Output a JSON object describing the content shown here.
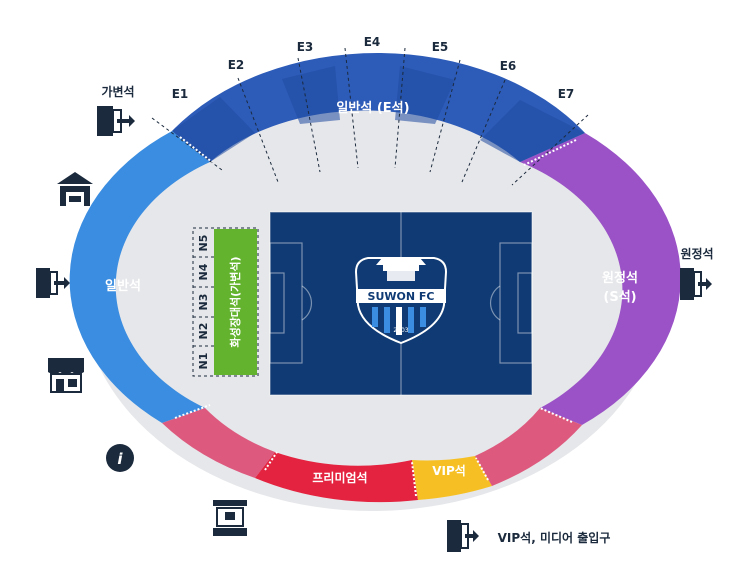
{
  "colors": {
    "e_stand": "#2d5bb8",
    "e_stand_dark": "#1f4a9e",
    "general_stand": "#3a8de0",
    "away_stand": "#9a52c6",
    "pink": "#dd5a7e",
    "premium": "#e3233f",
    "vip": "#f6c024",
    "field": "#0f3a73",
    "family_zone": "#63b32e",
    "ring": "#e6e7ea",
    "icon": "#1b2a3d"
  },
  "sectors": [
    {
      "id": "e1",
      "label": "E1"
    },
    {
      "id": "e2",
      "label": "E2"
    },
    {
      "id": "e3",
      "label": "E3"
    },
    {
      "id": "e4",
      "label": "E4"
    },
    {
      "id": "e5",
      "label": "E5"
    },
    {
      "id": "e6",
      "label": "E6"
    },
    {
      "id": "e7",
      "label": "E7"
    }
  ],
  "n_sectors": [
    {
      "id": "n1",
      "label": "N1"
    },
    {
      "id": "n2",
      "label": "N2"
    },
    {
      "id": "n3",
      "label": "N3"
    },
    {
      "id": "n4",
      "label": "N4"
    },
    {
      "id": "n5",
      "label": "N5"
    }
  ],
  "stands": {
    "east": "일반석 (E석)",
    "west": "일반석",
    "south_line1": "원정석",
    "south_line2": "(S석)",
    "premium": "프리미엄석",
    "vip": "VIP석",
    "family": "화성장대석(가변석)"
  },
  "club": {
    "name": "SUWON FC",
    "year": "2003"
  },
  "facilities": {
    "gate_general": "가변석",
    "gate_away": "원정석",
    "gate_vip": "VIP석, 미디어 출입구",
    "info_icon_text": "i"
  }
}
